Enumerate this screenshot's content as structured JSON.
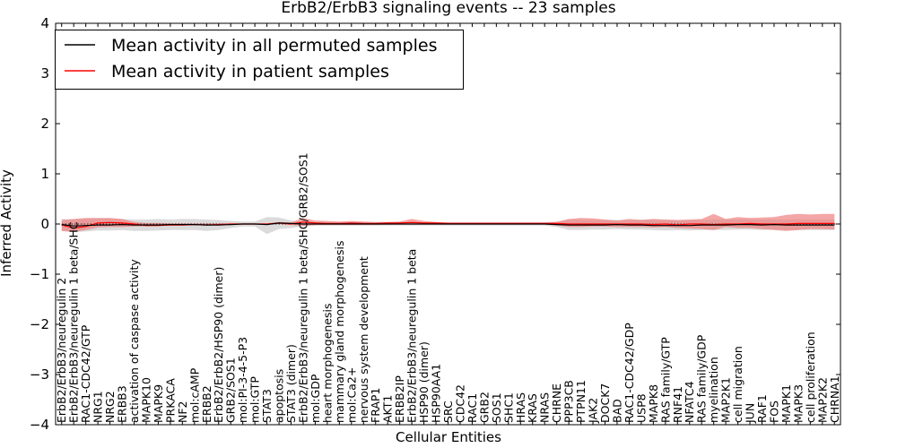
{
  "chart_data": {
    "type": "line",
    "title": "ErbB2/ErbB3 signaling events -- 23 samples",
    "xlabel": "Cellular Entities",
    "ylabel": "Inferred Activity",
    "ylim": [
      -4,
      4
    ],
    "yticks": [
      -4,
      -3,
      -2,
      -1,
      0,
      1,
      2,
      3,
      4
    ],
    "ytick_labels": [
      "−4",
      "−3",
      "−2",
      "−1",
      "0",
      "1",
      "2",
      "3",
      "4"
    ],
    "legend_position": "upper-left",
    "categories": [
      "ErbB2/ErbB3/neuregulin 2",
      "ErbB2/ErbB3/neuregulin 1 beta/SHC",
      "RAC1-CDC42/GTP",
      "NRG1",
      "NRG2",
      "ERBB3",
      "activation of caspase activity",
      "MAPK10",
      "MAPK9",
      "PRKACA",
      "NF2",
      "mol:cAMP",
      "ERBB2",
      "ErbB2/ErbB2/HSP90 (dimer)",
      "GRB2/SOS1",
      "mol:PI-3-4-5-P3",
      "mol:GTP",
      "STAT3",
      "apoptosis",
      "STAT3 (dimer)",
      "ErbB2/ErbB3/neuregulin 1 beta/SHC/GRB2/SOS1",
      "mol:GDP",
      "heart morphogenesis",
      "mammary gland morphogenesis",
      "mol:Ca2+",
      "nervous system development",
      "FRAP1",
      "AKT1",
      "ERBB2IP",
      "ErbB2/ErbB3/neuregulin 1 beta",
      "HSP90 (dimer)",
      "HSP90AA1",
      "SRC",
      "CDC42",
      "RAC1",
      "GRB2",
      "SOS1",
      "SHC1",
      "HRAS",
      "KRAS",
      "NRAS",
      "CHRNE",
      "PPP3CB",
      "PTPN11",
      "JAK2",
      "DOCK7",
      "BAD",
      "RAC1-CDC42/GDP",
      "USP8",
      "MAPK8",
      "RAS family/GTP",
      "RNF41",
      "NFATC4",
      "RAS family/GDP",
      "myelination",
      "MAP2K1",
      "cell migration",
      "JUN",
      "RAF1",
      "FOS",
      "MAPK1",
      "MAPK3",
      "cell proliferation",
      "MAP2K2",
      "CHRNA1"
    ],
    "series": [
      {
        "name": "Mean activity in all permuted samples",
        "color": "#000000",
        "values": [
          -0.01,
          -0.04,
          -0.03,
          -0.02,
          -0.02,
          -0.01,
          -0.02,
          -0.02,
          -0.02,
          -0.01,
          -0.01,
          -0.01,
          -0.02,
          -0.02,
          -0.01,
          0,
          0,
          -0.01,
          0.02,
          0.01,
          0,
          0,
          0,
          0,
          0,
          0,
          0,
          0,
          0,
          0,
          0,
          0,
          0,
          0,
          0,
          0,
          0,
          0,
          0,
          0,
          0,
          -0.01,
          -0.02,
          -0.02,
          -0.02,
          -0.02,
          -0.01,
          -0.02,
          -0.02,
          -0.03,
          -0.03,
          -0.03,
          -0.03,
          -0.02,
          -0.02,
          -0.02,
          -0.01,
          -0.01,
          -0.02,
          -0.01,
          -0.02,
          -0.02,
          -0.02,
          -0.02,
          -0.02
        ],
        "band": {
          "color": "#c8c8c8",
          "low": [
            -0.14,
            -0.16,
            -0.15,
            -0.13,
            -0.13,
            -0.12,
            -0.14,
            -0.14,
            -0.13,
            -0.12,
            -0.12,
            -0.12,
            -0.14,
            -0.12,
            -0.08,
            -0.05,
            -0.05,
            -0.2,
            -0.1,
            -0.08,
            -0.05,
            -0.03,
            -0.03,
            -0.03,
            -0.03,
            -0.03,
            -0.03,
            -0.03,
            -0.03,
            -0.03,
            -0.03,
            -0.03,
            -0.03,
            -0.03,
            -0.03,
            -0.03,
            -0.03,
            -0.03,
            -0.03,
            -0.03,
            -0.03,
            -0.06,
            -0.12,
            -0.12,
            -0.11,
            -0.11,
            -0.1,
            -0.11,
            -0.11,
            -0.12,
            -0.13,
            -0.12,
            -0.13,
            -0.12,
            -0.12,
            -0.12,
            -0.11,
            -0.11,
            -0.12,
            -0.11,
            -0.12,
            -0.12,
            -0.12,
            -0.12,
            -0.12
          ],
          "high": [
            0.1,
            0.09,
            0.1,
            0.11,
            0.11,
            0.1,
            0.09,
            0.09,
            0.1,
            0.09,
            0.1,
            0.1,
            0.09,
            0.08,
            0.06,
            0.05,
            0.05,
            0.14,
            0.13,
            0.07,
            0.04,
            0.03,
            0.03,
            0.03,
            0.03,
            0.03,
            0.03,
            0.03,
            0.03,
            0.03,
            0.03,
            0.03,
            0.03,
            0.03,
            0.03,
            0.03,
            0.03,
            0.03,
            0.03,
            0.03,
            0.03,
            0.05,
            0.09,
            0.08,
            0.08,
            0.08,
            0.08,
            0.08,
            0.09,
            0.09,
            0.08,
            0.08,
            0.08,
            0.08,
            0.09,
            0.09,
            0.09,
            0.09,
            0.09,
            0.09,
            0.09,
            0.09,
            0.09,
            0.09,
            0.09
          ]
        }
      },
      {
        "name": "Mean activity in patient samples",
        "color": "#ff0000",
        "values": [
          -0.02,
          -0.08,
          -0.05,
          0.02,
          0.03,
          0.02,
          0,
          -0.03,
          -0.03,
          -0.02,
          -0.02,
          -0.01,
          -0.02,
          -0.01,
          0,
          0,
          0,
          0,
          0.02,
          0,
          0.04,
          0.02,
          0.01,
          0.01,
          0.02,
          0.01,
          0.01,
          0.02,
          0.02,
          0.03,
          0.02,
          0.02,
          0.01,
          0.01,
          0.01,
          0.01,
          0.01,
          0.01,
          0.01,
          0.01,
          0.01,
          0.01,
          0,
          0,
          0,
          0,
          0,
          0,
          0,
          -0.01,
          0,
          -0.02,
          0,
          0,
          -0.01,
          0,
          0,
          0.01,
          0,
          0,
          0,
          0.01,
          0.01,
          0.01,
          0.01
        ],
        "band": {
          "color": "#f08080",
          "low": [
            -0.14,
            -0.16,
            -0.12,
            -0.07,
            -0.06,
            -0.06,
            -0.05,
            -0.05,
            -0.04,
            -0.03,
            -0.03,
            -0.02,
            -0.03,
            -0.02,
            -0.01,
            -0.01,
            -0.01,
            -0.01,
            0,
            -0.02,
            -0.04,
            -0.02,
            -0.02,
            -0.02,
            -0.02,
            -0.02,
            -0.02,
            -0.01,
            -0.01,
            -0.01,
            -0.01,
            -0.01,
            -0.01,
            -0.01,
            -0.01,
            -0.01,
            -0.01,
            -0.01,
            -0.01,
            -0.01,
            -0.01,
            -0.03,
            -0.06,
            -0.06,
            -0.05,
            -0.05,
            -0.06,
            -0.06,
            -0.06,
            -0.07,
            -0.06,
            -0.08,
            -0.09,
            -0.1,
            -0.12,
            -0.06,
            -0.08,
            -0.08,
            -0.1,
            -0.12,
            -0.14,
            -0.12,
            -0.1,
            -0.1,
            -0.11
          ],
          "high": [
            0.08,
            0.1,
            0.12,
            0.12,
            0.12,
            0.1,
            0.04,
            0.02,
            0.02,
            0.01,
            0.01,
            0.01,
            0.01,
            0.01,
            0.01,
            0.01,
            0.01,
            0.01,
            0.04,
            0.03,
            0.12,
            0.07,
            0.06,
            0.05,
            0.06,
            0.05,
            0.04,
            0.04,
            0.05,
            0.1,
            0.06,
            0.04,
            0.03,
            0.03,
            0.03,
            0.03,
            0.03,
            0.03,
            0.03,
            0.03,
            0.03,
            0.04,
            0.1,
            0.12,
            0.11,
            0.09,
            0.07,
            0.1,
            0.08,
            0.1,
            0.09,
            0.08,
            0.09,
            0.1,
            0.2,
            0.1,
            0.14,
            0.12,
            0.13,
            0.14,
            0.18,
            0.2,
            0.19,
            0.2,
            0.2
          ]
        }
      }
    ]
  }
}
